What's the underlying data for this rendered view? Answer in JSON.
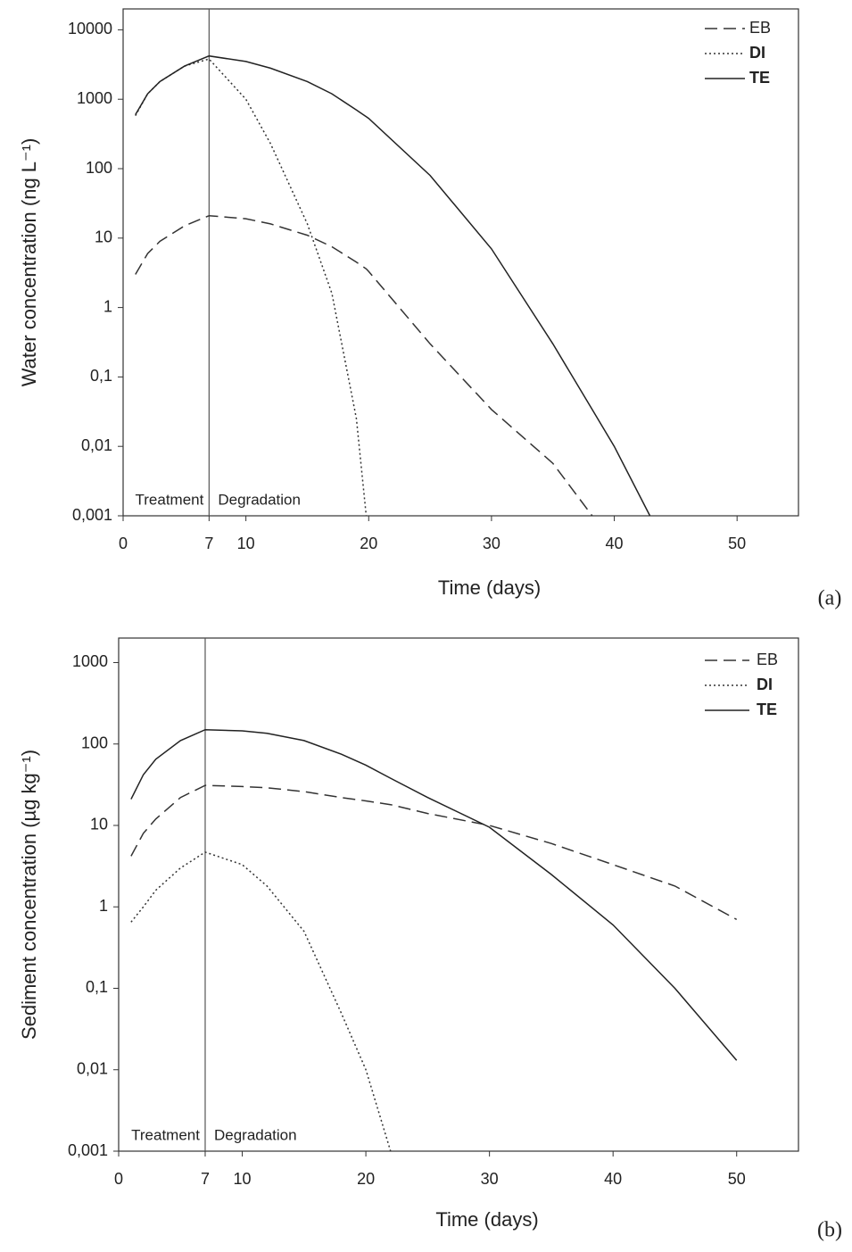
{
  "chart_data": [
    {
      "type": "line",
      "panel": "(a)",
      "ylabel": "Water concentration (ng L⁻¹)",
      "xlabel": "Time (days)",
      "log_y": true,
      "xlim": [
        0,
        55
      ],
      "ylim": [
        0.001,
        20000
      ],
      "xticks": [
        0,
        7,
        10,
        20,
        30,
        40,
        50
      ],
      "yticks": [
        {
          "value": 0.001,
          "label": "0,001"
        },
        {
          "value": 0.01,
          "label": "0,01"
        },
        {
          "value": 0.1,
          "label": "0,1"
        },
        1,
        10,
        100,
        1000,
        10000
      ],
      "divider_x": 7,
      "annotations": [
        "Treatment",
        "Degradation"
      ],
      "legend": "upper right",
      "x": [
        1,
        2,
        3,
        5,
        7,
        10,
        12,
        15,
        17,
        19,
        19.8,
        20,
        25,
        30,
        35,
        38.2,
        40,
        42.9
      ],
      "series": [
        {
          "name": "EB",
          "color": "#333333",
          "style": "dashed",
          "values": [
            3,
            6,
            9,
            15,
            21,
            19,
            16,
            11,
            7.5,
            4.5,
            3.6,
            3.3,
            0.3,
            0.034,
            0.0057,
            0.001,
            null,
            null
          ]
        },
        {
          "name": "DI",
          "color": "#333333",
          "style": "dotted",
          "values": [
            580,
            1200,
            1800,
            3000,
            3800,
            1000,
            230,
            16,
            1.6,
            0.025,
            0.001,
            null,
            null,
            null,
            null,
            null,
            null,
            null
          ]
        },
        {
          "name": "TE",
          "color": "#222222",
          "style": "solid",
          "values": [
            600,
            1200,
            1800,
            3000,
            4200,
            3500,
            2800,
            1800,
            1200,
            700,
            560,
            530,
            80,
            7,
            0.3,
            0.034,
            0.01,
            0.001
          ]
        }
      ]
    },
    {
      "type": "line",
      "panel": "(b)",
      "ylabel": "Sediment concentration (µg kg⁻¹)",
      "xlabel": "Time (days)",
      "log_y": true,
      "xlim": [
        0,
        55
      ],
      "ylim": [
        0.001,
        2000
      ],
      "xticks": [
        0,
        7,
        10,
        20,
        30,
        40,
        50
      ],
      "yticks": [
        {
          "value": 0.001,
          "label": "0,001"
        },
        {
          "value": 0.01,
          "label": "0,01"
        },
        {
          "value": 0.1,
          "label": "0,1"
        },
        1,
        10,
        100,
        1000
      ],
      "divider_x": 7,
      "annotations": [
        "Treatment",
        "Degradation"
      ],
      "legend": "upper right",
      "x": [
        1,
        2,
        3,
        5,
        7,
        10,
        12,
        15,
        18,
        20,
        22,
        25,
        30,
        35,
        40,
        45,
        50
      ],
      "series": [
        {
          "name": "EB",
          "color": "#333333",
          "style": "dashed",
          "values": [
            4.2,
            8,
            12,
            22,
            31,
            30,
            29,
            26,
            22,
            20,
            18,
            14,
            10,
            6,
            3.3,
            1.8,
            0.7
          ]
        },
        {
          "name": "DI",
          "color": "#333333",
          "style": "dotted",
          "values": [
            0.65,
            1.0,
            1.6,
            3,
            4.7,
            3.3,
            1.8,
            0.5,
            0.05,
            0.01,
            0.001,
            null,
            null,
            null,
            null,
            null,
            null
          ]
        },
        {
          "name": "TE",
          "color": "#222222",
          "style": "solid",
          "values": [
            21,
            42,
            65,
            110,
            150,
            145,
            135,
            110,
            75,
            55,
            38,
            22,
            9.5,
            2.5,
            0.6,
            0.1,
            0.013
          ]
        }
      ]
    }
  ]
}
